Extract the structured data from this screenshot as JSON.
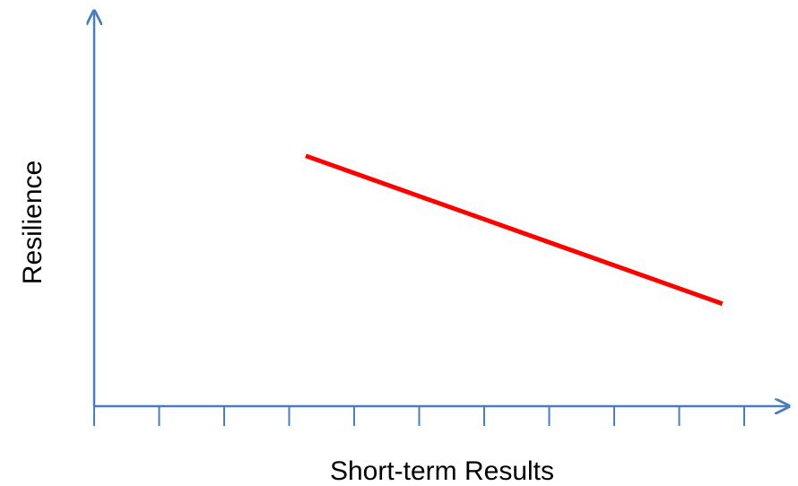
{
  "chart_data": {
    "type": "line",
    "title": "",
    "xlabel": "Short-term Results",
    "ylabel": "Resilience",
    "xlim": [
      0,
      10
    ],
    "ylim": [
      0,
      10
    ],
    "x_tick_count": 10,
    "show_tick_labels": false,
    "grid": false,
    "legend": "none",
    "series": [
      {
        "x": [
          3.3,
          9.8
        ],
        "y": [
          6.6,
          2.7
        ],
        "color": "#ff0000"
      }
    ],
    "axis_color": "#4a7ebb"
  }
}
